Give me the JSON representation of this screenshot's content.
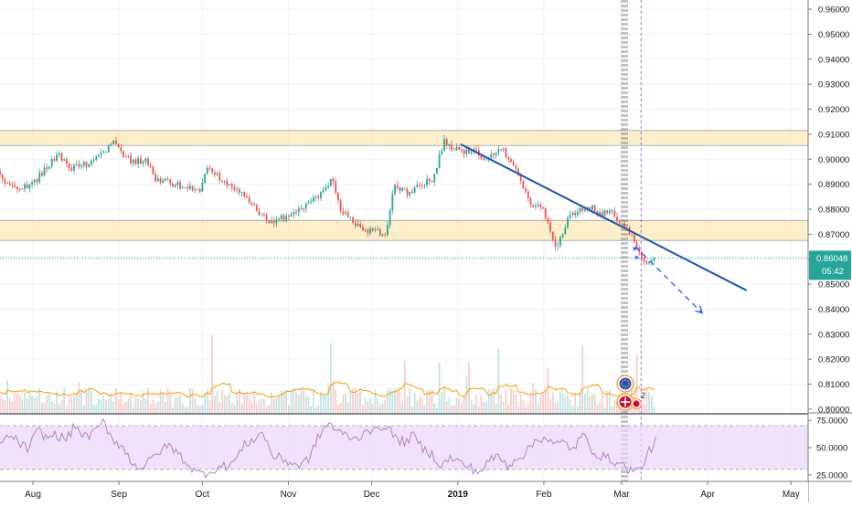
{
  "chart_data": {
    "type": "candlestick",
    "title": "",
    "y_axis": {
      "ticks": [
        "0.96000",
        "0.95000",
        "0.94000",
        "0.93000",
        "0.92000",
        "0.91000",
        "0.90000",
        "0.89000",
        "0.88000",
        "0.87000",
        "0.86000",
        "0.85000",
        "0.84000",
        "0.83000",
        "0.82000",
        "0.81000",
        "0.80000"
      ],
      "range": [
        0.7985,
        0.9637
      ],
      "side": "right"
    },
    "x_axis": {
      "ticks": [
        "Aug",
        "Sep",
        "Oct",
        "Nov",
        "Dec",
        "2019",
        "Feb",
        "Mar",
        "Apr",
        "May"
      ]
    },
    "last_price": {
      "value": "0.86048",
      "countdown": "05:42",
      "color": "#26a69a"
    },
    "zones": [
      {
        "y_top": 0.9115,
        "y_bottom": 0.9055,
        "color": "#fbe9b7"
      },
      {
        "y_top": 0.8755,
        "y_bottom": 0.8675,
        "color": "#fbe9b7"
      }
    ],
    "trendline": {
      "from": [
        "2019-01-02",
        0.906
      ],
      "to": [
        "2019-04-15",
        0.8475
      ],
      "color": "#1e53b0"
    },
    "projection": {
      "from": [
        "2019-03-06",
        0.865
      ],
      "to": [
        "2019-03-30",
        0.8385
      ],
      "color": "#2962ff",
      "style": "dashed"
    },
    "close_path": [
      [
        "2018-07-17",
        0.8955
      ],
      [
        "2018-07-25",
        0.888
      ],
      [
        "2018-07-31",
        0.889
      ],
      [
        "2018-08-06",
        0.8965
      ],
      [
        "2018-08-10",
        0.902
      ],
      [
        "2018-08-14",
        0.896
      ],
      [
        "2018-08-22",
        0.899
      ],
      [
        "2018-08-27",
        0.903
      ],
      [
        "2018-08-30",
        0.9085
      ],
      [
        "2018-09-02",
        0.902
      ],
      [
        "2018-09-06",
        0.899
      ],
      [
        "2018-09-11",
        0.9
      ],
      [
        "2018-09-14",
        0.892
      ],
      [
        "2018-09-20",
        0.8905
      ],
      [
        "2018-09-26",
        0.889
      ],
      [
        "2018-09-30",
        0.888
      ],
      [
        "2018-10-03",
        0.8975
      ],
      [
        "2018-10-09",
        0.891
      ],
      [
        "2018-10-14",
        0.8875
      ],
      [
        "2018-10-20",
        0.88
      ],
      [
        "2018-10-25",
        0.8745
      ],
      [
        "2018-10-31",
        0.877
      ],
      [
        "2018-11-06",
        0.88
      ],
      [
        "2018-11-12",
        0.886
      ],
      [
        "2018-11-17",
        0.892
      ],
      [
        "2018-11-20",
        0.8795
      ],
      [
        "2018-11-25",
        0.874
      ],
      [
        "2018-11-30",
        0.8715
      ],
      [
        "2018-12-06",
        0.87
      ],
      [
        "2018-12-09",
        0.889
      ],
      [
        "2018-12-14",
        0.8865
      ],
      [
        "2018-12-18",
        0.8895
      ],
      [
        "2018-12-23",
        0.892
      ],
      [
        "2018-12-27",
        0.907
      ],
      [
        "2019-01-02",
        0.9025
      ],
      [
        "2019-01-07",
        0.9045
      ],
      [
        "2019-01-11",
        0.899
      ],
      [
        "2019-01-17",
        0.904
      ],
      [
        "2019-01-22",
        0.895
      ],
      [
        "2019-01-27",
        0.883
      ],
      [
        "2019-02-01",
        0.879
      ],
      [
        "2019-02-05",
        0.8635
      ],
      [
        "2019-02-10",
        0.8775
      ],
      [
        "2019-02-15",
        0.88
      ],
      [
        "2019-02-18",
        0.8805
      ],
      [
        "2019-02-21",
        0.878
      ],
      [
        "2019-02-25",
        0.879
      ],
      [
        "2019-02-28",
        0.876
      ],
      [
        "2019-03-03",
        0.872
      ],
      [
        "2019-03-06",
        0.866
      ],
      [
        "2019-03-10",
        0.8575
      ],
      [
        "2019-03-13",
        0.8605
      ]
    ],
    "volume": {
      "ma_color": "#ff9800"
    },
    "rsi": {
      "ticks": [
        "75.0000",
        "50.0000",
        "25.0000"
      ],
      "range": [
        19,
        81
      ],
      "upper": 70,
      "lower": 30,
      "band_color": "#ead7f7",
      "line_color": "#b482c6",
      "values": [
        52,
        61,
        55,
        48,
        66,
        59,
        62,
        57,
        70,
        60,
        63,
        74,
        58,
        51,
        37,
        31,
        38,
        47,
        52,
        44,
        35,
        26,
        27,
        31,
        33,
        38,
        52,
        58,
        64,
        42,
        40,
        36,
        33,
        42,
        62,
        73,
        64,
        61,
        57,
        68,
        64,
        72,
        59,
        55,
        61,
        49,
        44,
        33,
        41,
        36,
        32,
        27,
        37,
        43,
        33,
        41,
        45,
        57,
        60,
        52,
        55,
        48,
        62,
        48,
        42,
        39,
        35,
        30,
        28,
        45,
        60
      ]
    },
    "events": {
      "badge_count": "2"
    }
  }
}
